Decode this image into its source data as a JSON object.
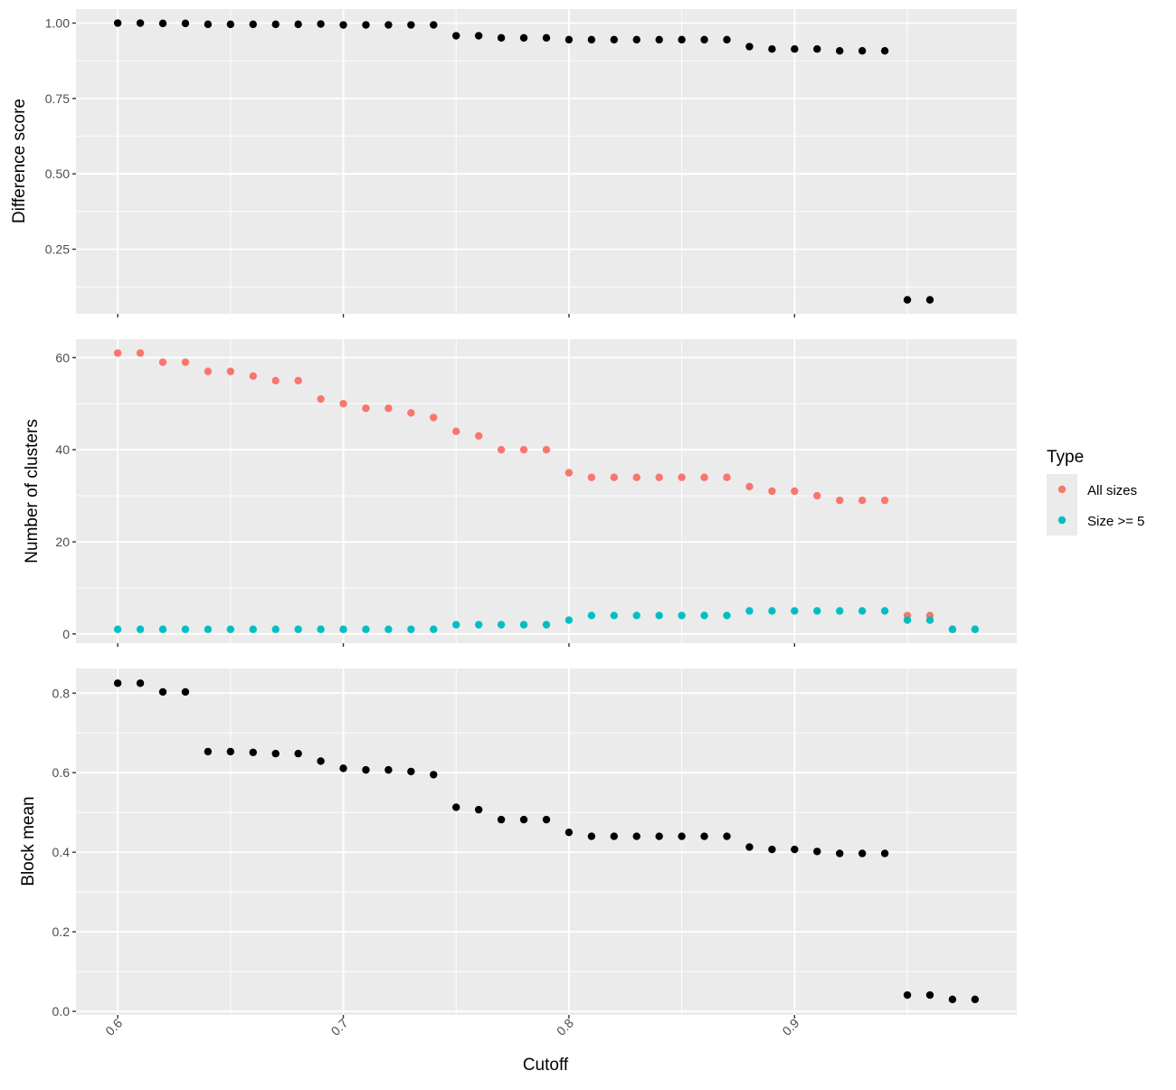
{
  "chart_data": {
    "type": "scatter",
    "xlabel": "Cutoff",
    "x_ticks": [
      "0.6",
      "0.7",
      "0.8",
      "0.9"
    ],
    "xlim": [
      0.5815,
      0.9985
    ],
    "legend": {
      "title": "Type",
      "placement": "right",
      "items": [
        {
          "label": "All sizes",
          "color": "#F8766D"
        },
        {
          "label": "Size >= 5",
          "color": "#00BFC4"
        }
      ]
    },
    "panels": [
      {
        "ylabel": "Difference score",
        "ylim": [
          0.0355,
          1.0466
        ],
        "y_ticks": [
          "0.25",
          "0.50",
          "0.75",
          "1.00"
        ],
        "series": [
          {
            "color": "#000000",
            "points": [
              [
                0.6,
                1.0
              ],
              [
                0.61,
                1.0
              ],
              [
                0.62,
                0.999
              ],
              [
                0.63,
                0.999
              ],
              [
                0.64,
                0.996
              ],
              [
                0.65,
                0.996
              ],
              [
                0.66,
                0.996
              ],
              [
                0.67,
                0.996
              ],
              [
                0.68,
                0.996
              ],
              [
                0.69,
                0.997
              ],
              [
                0.7,
                0.994
              ],
              [
                0.71,
                0.994
              ],
              [
                0.72,
                0.994
              ],
              [
                0.73,
                0.994
              ],
              [
                0.74,
                0.994
              ],
              [
                0.75,
                0.958
              ],
              [
                0.76,
                0.958
              ],
              [
                0.77,
                0.951
              ],
              [
                0.78,
                0.951
              ],
              [
                0.79,
                0.951
              ],
              [
                0.8,
                0.945
              ],
              [
                0.81,
                0.945
              ],
              [
                0.82,
                0.945
              ],
              [
                0.83,
                0.945
              ],
              [
                0.84,
                0.945
              ],
              [
                0.85,
                0.945
              ],
              [
                0.86,
                0.945
              ],
              [
                0.87,
                0.945
              ],
              [
                0.88,
                0.922
              ],
              [
                0.89,
                0.914
              ],
              [
                0.9,
                0.914
              ],
              [
                0.91,
                0.914
              ],
              [
                0.92,
                0.908
              ],
              [
                0.93,
                0.908
              ],
              [
                0.94,
                0.908
              ],
              [
                0.95,
                0.082
              ],
              [
                0.96,
                0.082
              ]
            ]
          }
        ]
      },
      {
        "ylabel": "Number of clusters",
        "ylim": [
          -2,
          64
        ],
        "y_ticks": [
          "0",
          "20",
          "40",
          "60"
        ],
        "series": [
          {
            "name": "All sizes",
            "color": "#F8766D",
            "points": [
              [
                0.6,
                61
              ],
              [
                0.61,
                61
              ],
              [
                0.62,
                59
              ],
              [
                0.63,
                59
              ],
              [
                0.64,
                57
              ],
              [
                0.65,
                57
              ],
              [
                0.66,
                56
              ],
              [
                0.67,
                55
              ],
              [
                0.68,
                55
              ],
              [
                0.69,
                51
              ],
              [
                0.7,
                50
              ],
              [
                0.71,
                49
              ],
              [
                0.72,
                49
              ],
              [
                0.73,
                48
              ],
              [
                0.74,
                47
              ],
              [
                0.75,
                44
              ],
              [
                0.76,
                43
              ],
              [
                0.77,
                40
              ],
              [
                0.78,
                40
              ],
              [
                0.79,
                40
              ],
              [
                0.8,
                35
              ],
              [
                0.81,
                34
              ],
              [
                0.82,
                34
              ],
              [
                0.83,
                34
              ],
              [
                0.84,
                34
              ],
              [
                0.85,
                34
              ],
              [
                0.86,
                34
              ],
              [
                0.87,
                34
              ],
              [
                0.88,
                32
              ],
              [
                0.89,
                31
              ],
              [
                0.9,
                31
              ],
              [
                0.91,
                30
              ],
              [
                0.92,
                29
              ],
              [
                0.93,
                29
              ],
              [
                0.94,
                29
              ],
              [
                0.95,
                4
              ],
              [
                0.96,
                4
              ],
              [
                0.97,
                1
              ],
              [
                0.98,
                1
              ]
            ]
          },
          {
            "name": "Size >= 5",
            "color": "#00BFC4",
            "points": [
              [
                0.6,
                1
              ],
              [
                0.61,
                1
              ],
              [
                0.62,
                1
              ],
              [
                0.63,
                1
              ],
              [
                0.64,
                1
              ],
              [
                0.65,
                1
              ],
              [
                0.66,
                1
              ],
              [
                0.67,
                1
              ],
              [
                0.68,
                1
              ],
              [
                0.69,
                1
              ],
              [
                0.7,
                1
              ],
              [
                0.71,
                1
              ],
              [
                0.72,
                1
              ],
              [
                0.73,
                1
              ],
              [
                0.74,
                1
              ],
              [
                0.75,
                2
              ],
              [
                0.76,
                2
              ],
              [
                0.77,
                2
              ],
              [
                0.78,
                2
              ],
              [
                0.79,
                2
              ],
              [
                0.8,
                3
              ],
              [
                0.81,
                4
              ],
              [
                0.82,
                4
              ],
              [
                0.83,
                4
              ],
              [
                0.84,
                4
              ],
              [
                0.85,
                4
              ],
              [
                0.86,
                4
              ],
              [
                0.87,
                4
              ],
              [
                0.88,
                5
              ],
              [
                0.89,
                5
              ],
              [
                0.9,
                5
              ],
              [
                0.91,
                5
              ],
              [
                0.92,
                5
              ],
              [
                0.93,
                5
              ],
              [
                0.94,
                5
              ],
              [
                0.95,
                3
              ],
              [
                0.96,
                3
              ],
              [
                0.97,
                1
              ],
              [
                0.98,
                1
              ]
            ]
          }
        ]
      },
      {
        "ylabel": "Block mean",
        "ylim": [
          -0.009,
          0.862
        ],
        "y_ticks": [
          "0.0",
          "0.2",
          "0.4",
          "0.6",
          "0.8"
        ],
        "series": [
          {
            "color": "#000000",
            "points": [
              [
                0.6,
                0.825
              ],
              [
                0.61,
                0.825
              ],
              [
                0.62,
                0.803
              ],
              [
                0.63,
                0.803
              ],
              [
                0.64,
                0.653
              ],
              [
                0.65,
                0.653
              ],
              [
                0.66,
                0.651
              ],
              [
                0.67,
                0.648
              ],
              [
                0.68,
                0.648
              ],
              [
                0.69,
                0.629
              ],
              [
                0.7,
                0.611
              ],
              [
                0.71,
                0.607
              ],
              [
                0.72,
                0.607
              ],
              [
                0.73,
                0.603
              ],
              [
                0.74,
                0.595
              ],
              [
                0.75,
                0.513
              ],
              [
                0.76,
                0.507
              ],
              [
                0.77,
                0.482
              ],
              [
                0.78,
                0.482
              ],
              [
                0.79,
                0.482
              ],
              [
                0.8,
                0.45
              ],
              [
                0.81,
                0.44
              ],
              [
                0.82,
                0.44
              ],
              [
                0.83,
                0.44
              ],
              [
                0.84,
                0.44
              ],
              [
                0.85,
                0.44
              ],
              [
                0.86,
                0.44
              ],
              [
                0.87,
                0.44
              ],
              [
                0.88,
                0.413
              ],
              [
                0.89,
                0.407
              ],
              [
                0.9,
                0.407
              ],
              [
                0.91,
                0.402
              ],
              [
                0.92,
                0.397
              ],
              [
                0.93,
                0.397
              ],
              [
                0.94,
                0.397
              ],
              [
                0.95,
                0.041
              ],
              [
                0.96,
                0.041
              ],
              [
                0.97,
                0.03
              ],
              [
                0.98,
                0.03
              ]
            ]
          }
        ]
      }
    ]
  }
}
